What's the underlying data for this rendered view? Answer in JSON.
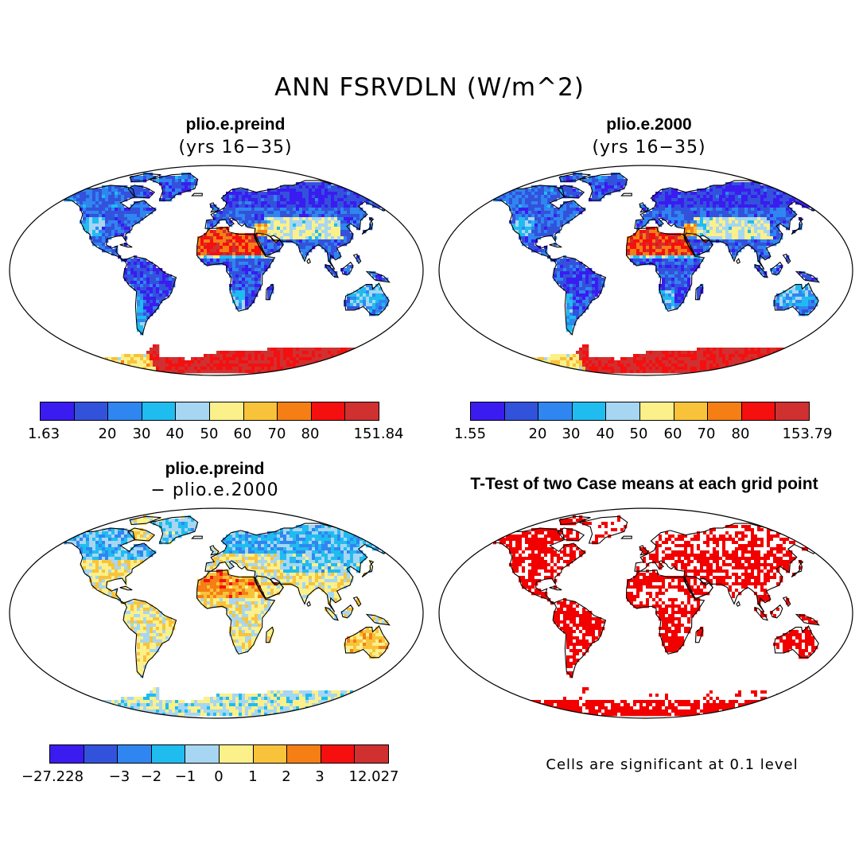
{
  "title": "ANN FSRVDLN (W/m^2)",
  "panels": [
    {
      "title": "plio.e.preind",
      "subtitle": "(yrs 16−35)",
      "type": "field"
    },
    {
      "title": "plio.e.2000",
      "subtitle": "(yrs 16−35)",
      "type": "field"
    },
    {
      "title": "plio.e.preind",
      "subtitle": "− plio.e.2000",
      "type": "difference"
    },
    {
      "title": "T-Test of two Case means at each grid point",
      "subtitle": "",
      "type": "significance"
    }
  ],
  "colorbars": [
    {
      "labels": [
        "1.63",
        "20",
        "30",
        "40",
        "50",
        "60",
        "70",
        "80",
        "151.84"
      ]
    },
    {
      "labels": [
        "1.55",
        "20",
        "30",
        "40",
        "50",
        "60",
        "70",
        "80",
        "153.79"
      ]
    },
    {
      "labels": [
        "−27.228",
        "−3",
        "−2",
        "−1",
        "0",
        "1",
        "2",
        "3",
        "12.027"
      ]
    }
  ],
  "footnote": "Cells are significant at 0.1 level",
  "colors": {
    "palette": [
      "#3a1cf0",
      "#3352dc",
      "#2f86f0",
      "#1fbcf0",
      "#a6d6f2",
      "#fbf08a",
      "#f8c33a",
      "#f57f14",
      "#f50f0f",
      "#d03030"
    ],
    "significance": "#f20000",
    "continent_outline": "#000000"
  },
  "chart_data": {
    "type": "map",
    "projection": "Robinson",
    "variable": "FSRVDLN",
    "units": "W/m^2",
    "season": "ANN",
    "panels": [
      {
        "case": "plio.e.preind",
        "years": "16-35",
        "min": 1.63,
        "max": 151.84,
        "contour_levels": [
          20,
          30,
          40,
          50,
          60,
          70,
          80
        ]
      },
      {
        "case": "plio.e.2000",
        "years": "16-35",
        "min": 1.55,
        "max": 153.79,
        "contour_levels": [
          20,
          30,
          40,
          50,
          60,
          70,
          80
        ]
      },
      {
        "case": "plio.e.preind - plio.e.2000",
        "min": -27.228,
        "max": 12.027,
        "contour_levels": [
          -3,
          -2,
          -1,
          0,
          1,
          2,
          3
        ]
      },
      {
        "case": "T-Test",
        "significance_level": 0.1
      }
    ]
  }
}
